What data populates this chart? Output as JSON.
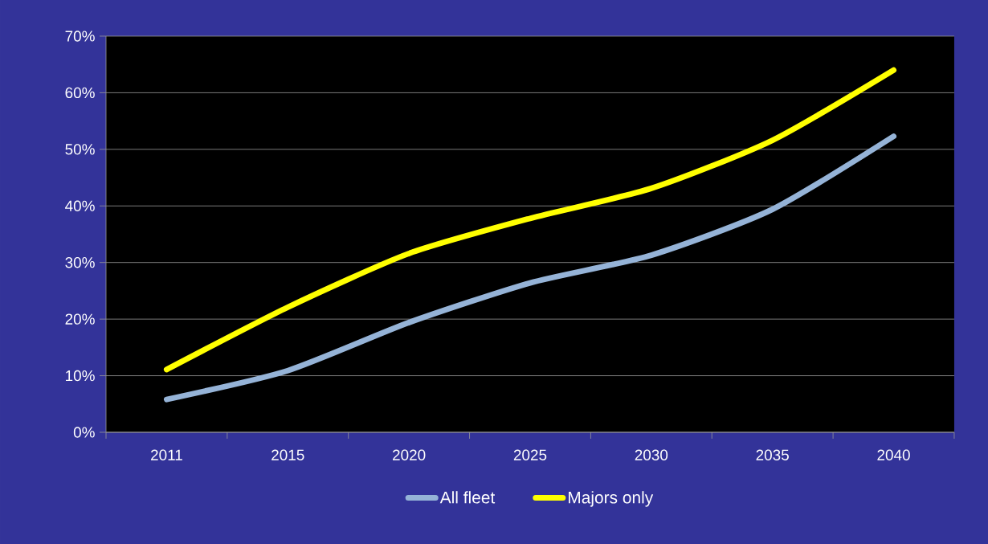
{
  "chart_data": {
    "type": "line",
    "categories": [
      "2011",
      "2015",
      "2020",
      "2025",
      "2030",
      "2035",
      "2040"
    ],
    "series": [
      {
        "name": "All fleet",
        "color": "#95b3d7",
        "values": [
          5.8,
          10.9,
          19.4,
          26.4,
          31.3,
          39.4,
          52.3
        ]
      },
      {
        "name": "Majors only",
        "color": "#ffff00",
        "values": [
          11.1,
          22.1,
          31.6,
          37.8,
          43.1,
          51.6,
          64.0
        ]
      }
    ],
    "ylim": [
      0,
      70
    ],
    "yticks": [
      {
        "value": 0,
        "label": "0%"
      },
      {
        "value": 10,
        "label": "10%"
      },
      {
        "value": 20,
        "label": "20%"
      },
      {
        "value": 30,
        "label": "30%"
      },
      {
        "value": 40,
        "label": "40%"
      },
      {
        "value": 50,
        "label": "50%"
      },
      {
        "value": 60,
        "label": "60%"
      },
      {
        "value": 70,
        "label": "70%"
      }
    ],
    "grid": "y",
    "legend": "bottom",
    "marker": "none",
    "line_style": "solid"
  }
}
